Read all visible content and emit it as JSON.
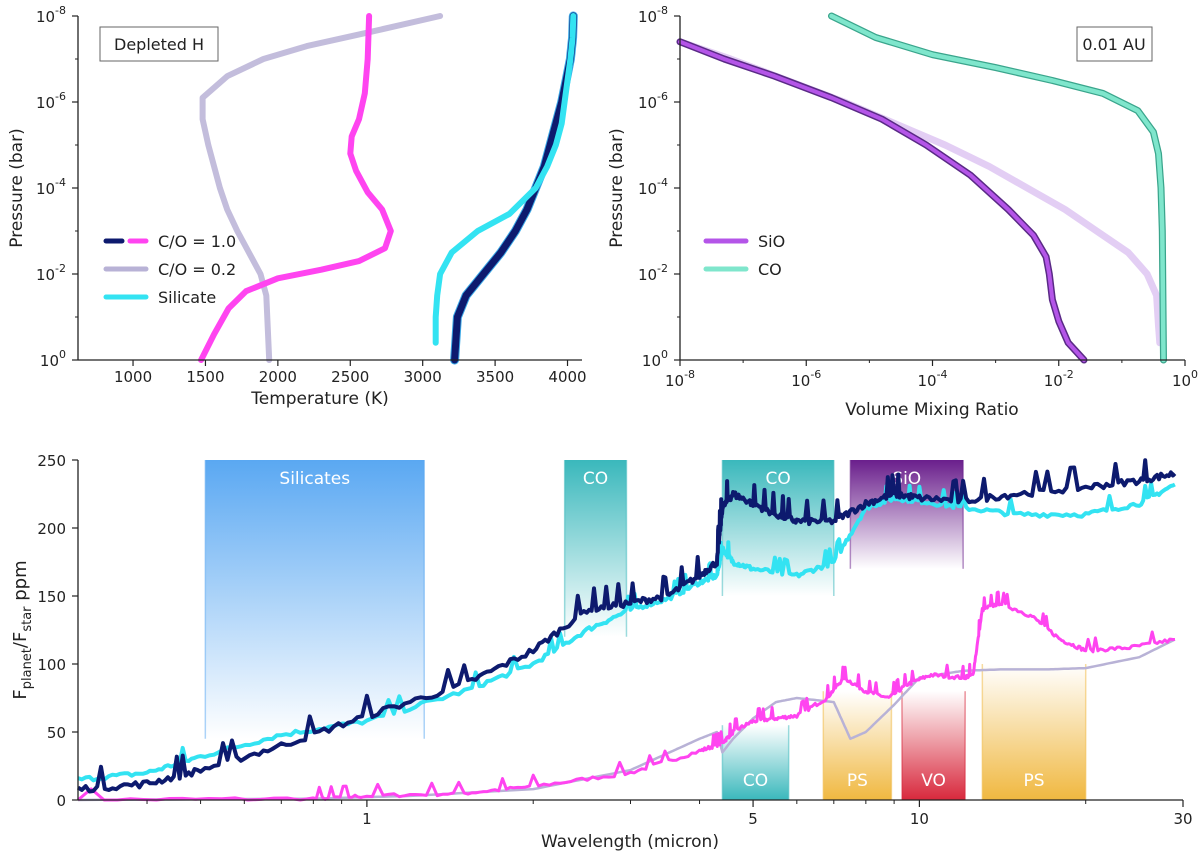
{
  "colors": {
    "co10": "#0d1a6e",
    "co10_hot": "#ff44f0",
    "co02": "#b8b2d6",
    "silicate": "#33e3f2",
    "sio": "#9b4fd6",
    "co_gas": "#7fe6cc",
    "band_silicates": "#5aa8f2",
    "band_co": "#3ab8bc",
    "band_sio": "#6a1f8c",
    "band_ps": "#f0b840",
    "band_vo": "#d8283c"
  },
  "chart_data": [
    {
      "id": "tp",
      "type": "line",
      "xlabel": "Temperature (K)",
      "ylabel": "Pressure (bar)",
      "xlim": [
        620,
        4100
      ],
      "ylim_log10": [
        0,
        -8
      ],
      "xticks": [
        "1000",
        "2000",
        "3000",
        "4000",
        "1500",
        "2500",
        "3500"
      ],
      "xtick_values": [
        1000,
        2000,
        3000,
        4000,
        1500,
        2500,
        3500
      ],
      "ytick_exponents": [
        "-8",
        "-6",
        "-4",
        "-2",
        "0"
      ],
      "ytick_labels": [
        "10",
        "10",
        "10",
        "10",
        "10"
      ],
      "annotation": "Depleted H",
      "legend": [
        "C/O = 1.0",
        "C/O = 0.2",
        "Silicate"
      ],
      "series": [
        {
          "name": "C/O = 1.0 (0.01 AU)",
          "color_key": "co10",
          "width": 7,
          "T": [
            4040,
            4035,
            4020,
            3990,
            3960,
            3920,
            3880,
            3840,
            3780,
            3720,
            3640,
            3540,
            3420,
            3300,
            3240,
            3220
          ],
          "logP": [
            -8,
            -7.5,
            -7,
            -6.5,
            -6,
            -5.5,
            -5,
            -4.5,
            -4,
            -3.5,
            -3,
            -2.5,
            -2,
            -1.5,
            -1,
            0
          ]
        },
        {
          "name": "Silicate (0.01 AU)",
          "color_key": "silicate",
          "width": 6,
          "T": [
            4040,
            4035,
            4020,
            4000,
            3980,
            3960,
            3920,
            3860,
            3780,
            3600,
            3380,
            3200,
            3120,
            3100,
            3090,
            3090
          ],
          "logP": [
            -8,
            -7.5,
            -7,
            -6.5,
            -6,
            -5.5,
            -5,
            -4.5,
            -4,
            -3.4,
            -3,
            -2.5,
            -2,
            -1.5,
            -1,
            -0.4
          ]
        },
        {
          "name": "C/O = 0.2 (depleted H)",
          "color_key": "co02",
          "width": 6,
          "opacity": 0.85,
          "T": [
            3120,
            2600,
            2200,
            1900,
            1650,
            1480,
            1480,
            1520,
            1560,
            1600,
            1650,
            1720,
            1800,
            1880,
            1920,
            1940
          ],
          "logP": [
            -8,
            -7.6,
            -7.3,
            -7.0,
            -6.6,
            -6.1,
            -5.6,
            -5,
            -4.5,
            -4,
            -3.5,
            -3,
            -2.5,
            -2,
            -1.5,
            0
          ]
        },
        {
          "name": "C/O = 1.0 (depleted H)",
          "color_key": "co10_hot",
          "width": 6,
          "T": [
            2630,
            2620,
            2600,
            2560,
            2510,
            2500,
            2540,
            2620,
            2720,
            2780,
            2740,
            2560,
            2300,
            2000,
            1780,
            1660,
            1560,
            1470
          ],
          "logP": [
            -8,
            -7,
            -6.2,
            -5.6,
            -5.2,
            -4.8,
            -4.4,
            -3.9,
            -3.5,
            -3.0,
            -2.6,
            -2.3,
            -2.1,
            -1.9,
            -1.6,
            -1.2,
            -0.6,
            0
          ]
        }
      ]
    },
    {
      "id": "vmr",
      "type": "line",
      "xlabel": "Volume Mixing Ratio",
      "ylabel": "Pressure (bar)",
      "xlim_log10": [
        -8,
        0
      ],
      "ylim_log10": [
        0,
        -8
      ],
      "xtick_exponents": [
        "-8",
        "-6",
        "-4",
        "-2",
        "0"
      ],
      "xtick_labels": [
        "10",
        "10",
        "10",
        "10",
        "10"
      ],
      "ytick_exponents": [
        "-8",
        "-6",
        "-4",
        "-2",
        "0"
      ],
      "ytick_labels": [
        "10",
        "10",
        "10",
        "10",
        "10"
      ],
      "annotation": "0.01 AU",
      "legend": [
        "SiO",
        "CO"
      ],
      "series": [
        {
          "name": "SiO (faint)",
          "color_key": "sio",
          "width": 7,
          "opacity": 0.28,
          "logX": [
            -8,
            -7.2,
            -6.3,
            -5.4,
            -4.6,
            -3.8,
            -3.1,
            -2.5,
            -1.9,
            -1.4,
            -0.9,
            -0.6,
            -0.45,
            -0.42,
            -0.4
          ],
          "logP": [
            -7.4,
            -7.0,
            -6.5,
            -6.0,
            -5.5,
            -5.0,
            -4.5,
            -4.0,
            -3.5,
            -3.0,
            -2.5,
            -2.0,
            -1.5,
            -0.8,
            -0.4
          ]
        },
        {
          "name": "SiO",
          "color_key": "sio",
          "width": 5,
          "logX": [
            -8,
            -7.3,
            -6.5,
            -5.6,
            -4.8,
            -4.1,
            -3.4,
            -2.8,
            -2.4,
            -2.2,
            -2.15,
            -2.1,
            -2.0,
            -1.85,
            -1.6
          ],
          "logP": [
            -7.4,
            -7.0,
            -6.6,
            -6.1,
            -5.6,
            -5.0,
            -4.3,
            -3.5,
            -2.9,
            -2.4,
            -2.0,
            -1.4,
            -0.9,
            -0.4,
            0
          ]
        },
        {
          "name": "CO",
          "color_key": "co_gas",
          "width": 6,
          "logX": [
            -5.6,
            -4.9,
            -4.0,
            -3.0,
            -2.1,
            -1.3,
            -0.75,
            -0.5,
            -0.42,
            -0.38,
            -0.36,
            -0.35,
            -0.34
          ],
          "logP": [
            -8,
            -7.5,
            -7.1,
            -6.8,
            -6.5,
            -6.2,
            -5.8,
            -5.3,
            -4.8,
            -4.0,
            -3.0,
            -1.5,
            0
          ]
        }
      ]
    },
    {
      "id": "spectrum",
      "type": "line",
      "xlabel": "Wavelength (micron)",
      "ylabel_main": "F",
      "ylabel_sub1": "planet",
      "ylabel_mid": "/F",
      "ylabel_sub2": "star",
      "ylabel_tail": " ppm",
      "xscale": "log",
      "xlim": [
        0.3,
        30
      ],
      "xticks": [
        "1",
        "5",
        "10",
        "30"
      ],
      "xtick_values": [
        1,
        5,
        10,
        30
      ],
      "ylim": [
        0,
        250
      ],
      "yticks": [
        "0",
        "50",
        "100",
        "150",
        "200",
        "250"
      ],
      "ytick_values": [
        0,
        50,
        100,
        150,
        200,
        250
      ],
      "bands": [
        {
          "label": "Silicates",
          "x0": 0.51,
          "x1": 1.27,
          "y0": 45,
          "y1": 250,
          "color_key": "band_silicates",
          "position": "top"
        },
        {
          "label": "CO",
          "x0": 2.28,
          "x1": 2.95,
          "y0": 120,
          "y1": 250,
          "color_key": "band_co",
          "position": "top"
        },
        {
          "label": "CO",
          "x0": 4.4,
          "x1": 7.0,
          "y0": 150,
          "y1": 250,
          "color_key": "band_co",
          "position": "top"
        },
        {
          "label": "SiO",
          "x0": 7.5,
          "x1": 12.0,
          "y0": 170,
          "y1": 250,
          "color_key": "band_sio",
          "position": "top"
        },
        {
          "label": "CO",
          "x0": 4.4,
          "x1": 5.8,
          "y0": 0,
          "y1": 55,
          "color_key": "band_co",
          "position": "bottom"
        },
        {
          "label": "PS",
          "x0": 6.7,
          "x1": 8.9,
          "y0": 0,
          "y1": 80,
          "color_key": "band_ps",
          "position": "bottom"
        },
        {
          "label": "VO",
          "x0": 9.3,
          "x1": 12.1,
          "y0": 0,
          "y1": 80,
          "color_key": "band_vo",
          "position": "bottom"
        },
        {
          "label": "PS",
          "x0": 13.0,
          "x1": 20.0,
          "y0": 0,
          "y1": 100,
          "color_key": "band_ps",
          "position": "bottom"
        }
      ],
      "series": [
        {
          "name": "C/O = 0.2",
          "color_key": "co02",
          "width": 2.5,
          "x": [
            0.3,
            0.8,
            1.2,
            2.0,
            3.0,
            4.0,
            4.3,
            4.4,
            4.6,
            5.0,
            5.5,
            6.0,
            7.0,
            7.5,
            8.0,
            9.0,
            10.0,
            12.0,
            14.0,
            17.0,
            20.0,
            25.0,
            29.0
          ],
          "y": [
            0,
            1,
            3,
            8,
            22,
            45,
            50,
            35,
            45,
            60,
            72,
            75,
            72,
            45,
            50,
            70,
            90,
            95,
            96,
            96,
            97,
            105,
            118
          ]
        },
        {
          "name": "C/O = 1.0 (depleted H)",
          "color_key": "co10_hot",
          "width": 3,
          "x": [
            0.3,
            0.8,
            1.0,
            1.5,
            2.0,
            3.0,
            4.0,
            4.4,
            4.6,
            5.0,
            5.5,
            6.0,
            6.8,
            7.3,
            8.0,
            8.8,
            9.5,
            10.5,
            12.0,
            12.5,
            13.0,
            14.0,
            16.0,
            18.0,
            20.0,
            24.0,
            29.0
          ],
          "y": [
            0,
            1,
            3,
            5,
            10,
            20,
            36,
            42,
            50,
            58,
            60,
            62,
            75,
            90,
            80,
            75,
            85,
            92,
            90,
            92,
            140,
            145,
            135,
            118,
            110,
            112,
            118
          ],
          "noise": 4
        },
        {
          "name": "Silicate",
          "color_key": "silicate",
          "width": 4,
          "x": [
            0.3,
            0.4,
            0.5,
            0.7,
            1.0,
            1.5,
            2.0,
            2.5,
            3.0,
            3.5,
            4.0,
            4.3,
            4.4,
            4.6,
            5.0,
            6.0,
            7.0,
            8.0,
            9.0,
            10.0,
            12.0,
            15.0,
            20.0,
            25.0,
            29.0
          ],
          "y": [
            15,
            20,
            32,
            48,
            58,
            80,
            100,
            125,
            140,
            148,
            160,
            165,
            185,
            175,
            170,
            165,
            175,
            215,
            222,
            220,
            215,
            210,
            210,
            218,
            232
          ],
          "noise": 5
        },
        {
          "name": "C/O = 1.0",
          "color_key": "co10",
          "width": 4,
          "x": [
            0.3,
            0.4,
            0.5,
            0.7,
            1.0,
            1.5,
            2.0,
            2.5,
            3.0,
            3.5,
            4.0,
            4.3,
            4.4,
            4.6,
            5.0,
            5.5,
            6.0,
            7.0,
            8.0,
            9.0,
            10.0,
            12.0,
            15.0,
            20.0,
            25.0,
            29.0
          ],
          "y": [
            8,
            12,
            22,
            40,
            62,
            85,
            110,
            140,
            145,
            150,
            165,
            175,
            215,
            225,
            218,
            210,
            205,
            205,
            218,
            225,
            222,
            220,
            225,
            230,
            235,
            240
          ],
          "noise": 7
        }
      ]
    }
  ]
}
